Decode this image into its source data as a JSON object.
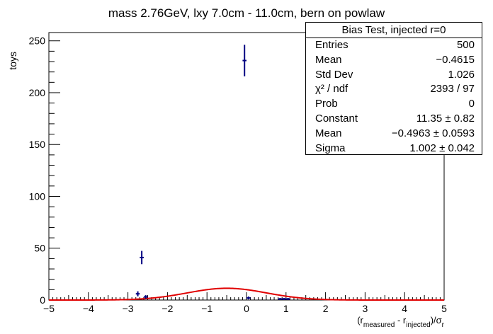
{
  "chart_data": {
    "type": "histogram",
    "title": "mass 2.76GeV, lxy 7.0cm - 11.0cm, bern on powlaw",
    "ylabel": "toys",
    "xlabel_parts": {
      "pre": "(r",
      "sub1": "measured",
      "mid": " - r",
      "sub2": "injected",
      "post": ")/σ",
      "sub3": "r"
    },
    "xlim": [
      -5,
      5
    ],
    "ylim": [
      0,
      258
    ],
    "xticks": [
      -5,
      -4,
      -3,
      -2,
      -1,
      0,
      1,
      2,
      3,
      4,
      5
    ],
    "xtick_labels": [
      "−5",
      "−4",
      "−3",
      "−2",
      "−1",
      "0",
      "1",
      "2",
      "3",
      "4",
      "5"
    ],
    "yticks": [
      0,
      50,
      100,
      150,
      200,
      250
    ],
    "ytick_labels": [
      "0",
      "50",
      "100",
      "150",
      "200",
      "250"
    ],
    "points": [
      {
        "x": -2.75,
        "y": 6,
        "xerr": 0.05,
        "yerr": 2.4
      },
      {
        "x": -2.65,
        "y": 41,
        "xerr": 0.05,
        "yerr": 6.4
      },
      {
        "x": -2.55,
        "y": 3,
        "xerr": 0.05,
        "yerr": 1.7
      },
      {
        "x": -0.05,
        "y": 231,
        "xerr": 0.05,
        "yerr": 15.2
      },
      {
        "x": 0.05,
        "y": 2,
        "xerr": 0.05,
        "yerr": 1.4
      },
      {
        "x": 0.85,
        "y": 1,
        "xerr": 0.05,
        "yerr": 1.0
      },
      {
        "x": 0.95,
        "y": 1,
        "xerr": 0.05,
        "yerr": 1.0
      },
      {
        "x": 1.05,
        "y": 1,
        "xerr": 0.05,
        "yerr": 1.0
      }
    ],
    "fit": {
      "type": "gaussian",
      "constant": 11.35,
      "mean": -0.4963,
      "sigma": 1.002
    },
    "colors": {
      "points": "#000080",
      "fit": "#e00000"
    },
    "stats_box": {
      "title": "Bias Test, injected r=0",
      "placement": "top-right",
      "rows": [
        {
          "label": "Entries",
          "value": "500"
        },
        {
          "label": "Mean",
          "value": "−0.4615"
        },
        {
          "label": "Std Dev",
          "value": "1.026"
        },
        {
          "label": "χ² / ndf",
          "value": "2393 / 97"
        },
        {
          "label": "Prob",
          "value": "0"
        },
        {
          "label": "Constant",
          "value": "11.35 ± 0.82"
        },
        {
          "label": "Mean",
          "value": "−0.4963 ± 0.0593"
        },
        {
          "label": "Sigma",
          "value": "1.002 ± 0.042"
        }
      ]
    }
  }
}
